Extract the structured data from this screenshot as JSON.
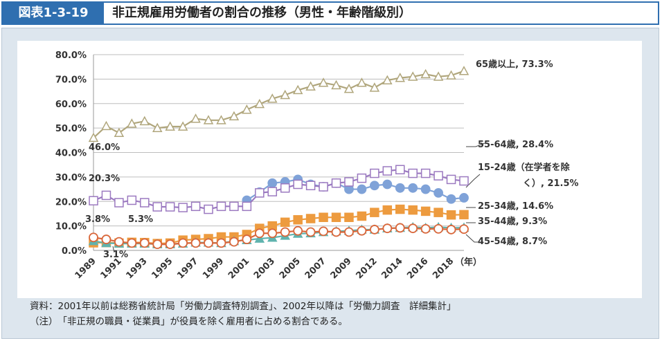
{
  "header": {
    "label": "図表1-3-19",
    "title": "非正規雇用労働者の割合の推移（男性・年齢階級別）"
  },
  "chart_data": {
    "type": "line",
    "ylim": [
      0,
      80
    ],
    "yticks": [
      "0.0%",
      "10.0%",
      "20.0%",
      "30.0%",
      "40.0%",
      "50.0%",
      "60.0%",
      "70.0%",
      "80.0%"
    ],
    "x_unit_label": "（年）",
    "x_tick_labels": [
      {
        "idx": 0,
        "label": "1989"
      },
      {
        "idx": 2,
        "label": "1991"
      },
      {
        "idx": 4,
        "label": "1993"
      },
      {
        "idx": 6,
        "label": "1995"
      },
      {
        "idx": 8,
        "label": "1997"
      },
      {
        "idx": 10,
        "label": "1999"
      },
      {
        "idx": 12,
        "label": "2001"
      },
      {
        "idx": 14,
        "label": "2003"
      },
      {
        "idx": 16,
        "label": "2005"
      },
      {
        "idx": 18,
        "label": "2007"
      },
      {
        "idx": 20,
        "label": "2009"
      },
      {
        "idx": 22,
        "label": "2012"
      },
      {
        "idx": 24,
        "label": "2014"
      },
      {
        "idx": 26,
        "label": "2016"
      },
      {
        "idx": 28,
        "label": "2018"
      }
    ],
    "series": [
      {
        "name": "65歳以上",
        "marker": "triangle",
        "color": "#b0a67c",
        "fill": "#ffffff",
        "line": "#b0a67c",
        "values": [
          46.0,
          50.8,
          48.0,
          51.8,
          52.8,
          50.0,
          50.6,
          50.6,
          53.8,
          53.2,
          53.2,
          54.8,
          57.5,
          59.8,
          62.0,
          63.5,
          65.5,
          67.0,
          68.5,
          67.5,
          66.0,
          68.5,
          66.5,
          69.5,
          70.5,
          71.0,
          72.0,
          71.0,
          71.5,
          73.3
        ]
      },
      {
        "name": "15-24歳（在学者を除く）",
        "marker": "circle-filled",
        "color": "#7fa2d8",
        "fill": "#7fa2d8",
        "line": "#7fa2d8",
        "values": [
          null,
          null,
          null,
          null,
          null,
          null,
          null,
          null,
          null,
          null,
          null,
          null,
          20.5,
          23.8,
          27.5,
          28.0,
          29.0,
          27.0,
          26.0,
          27.5,
          25.0,
          25.0,
          26.5,
          27.0,
          25.5,
          25.5,
          25.0,
          23.5,
          21.0,
          21.5
        ]
      },
      {
        "name": "55-64歳",
        "marker": "square-open",
        "color": "#9b79c0",
        "fill": "#ffffff",
        "line": "#9b79c0",
        "values": [
          20.3,
          22.5,
          19.5,
          20.5,
          19.5,
          17.8,
          17.8,
          17.5,
          18.0,
          16.8,
          18.0,
          18.0,
          18.0,
          23.5,
          24.0,
          25.5,
          27.0,
          26.5,
          26.0,
          27.5,
          28.0,
          29.5,
          31.5,
          32.5,
          33.0,
          31.5,
          31.5,
          30.5,
          29.0,
          28.4
        ]
      },
      {
        "name": "25-34歳",
        "marker": "square-filled",
        "color": "#ed9b3f",
        "fill": "#ed9b3f",
        "line": "#ed9b3f",
        "values": [
          3.1,
          3.2,
          3.0,
          3.3,
          3.2,
          2.8,
          3.0,
          4.2,
          4.5,
          4.8,
          5.5,
          5.5,
          6.5,
          9.0,
          10.0,
          11.5,
          12.5,
          13.0,
          13.5,
          13.5,
          13.5,
          14.0,
          15.5,
          16.5,
          16.8,
          16.5,
          16.0,
          15.5,
          14.5,
          14.6
        ]
      },
      {
        "name": "35-44歳",
        "marker": "triangle-filled",
        "color": "#5fb3ae",
        "fill": "#5fb3ae",
        "line": "#5fb3ae",
        "values": [
          3.8,
          3.0,
          2.8,
          2.8,
          2.8,
          2.5,
          2.5,
          2.8,
          3.2,
          3.2,
          3.0,
          3.8,
          4.2,
          4.8,
          5.2,
          6.0,
          6.8,
          7.0,
          7.5,
          7.8,
          8.0,
          8.5,
          8.5,
          9.0,
          9.2,
          9.5,
          9.2,
          9.5,
          9.2,
          9.3
        ]
      },
      {
        "name": "45-54歳",
        "marker": "circle-open",
        "color": "#d9673b",
        "fill": "#ffffff",
        "line": "#d9673b",
        "values": [
          5.3,
          4.5,
          3.5,
          3.0,
          3.0,
          2.5,
          2.5,
          3.0,
          3.0,
          3.0,
          3.0,
          3.5,
          4.5,
          7.0,
          7.0,
          7.5,
          8.0,
          7.5,
          7.8,
          7.5,
          7.5,
          8.0,
          8.5,
          9.0,
          9.2,
          9.0,
          8.8,
          8.8,
          8.5,
          8.7
        ]
      }
    ],
    "labels": {
      "s65": "65歳以上, 73.3%",
      "s55": "55-64歳, 28.4%",
      "s1524a": "15-24歳（在学者を除",
      "s1524b": "く）, 21.5%",
      "s2534": "25-34歳, 14.6%",
      "s3544": "35-44歳, 9.3%",
      "s4554": "45-54歳, 8.7%",
      "start65": "46.0%",
      "start55": "20.3%",
      "start3544": "3.8%",
      "start4554": "5.3%",
      "start2534": "3.1%"
    }
  },
  "notes": {
    "source": "資料：2001年以前は総務省統計局「労働力調査特別調査」、2002年以降は「労働力調査　詳細集計」",
    "note": "（注）　「非正規の職員・従業員」が役員を除く雇用者に占める割合である。"
  }
}
